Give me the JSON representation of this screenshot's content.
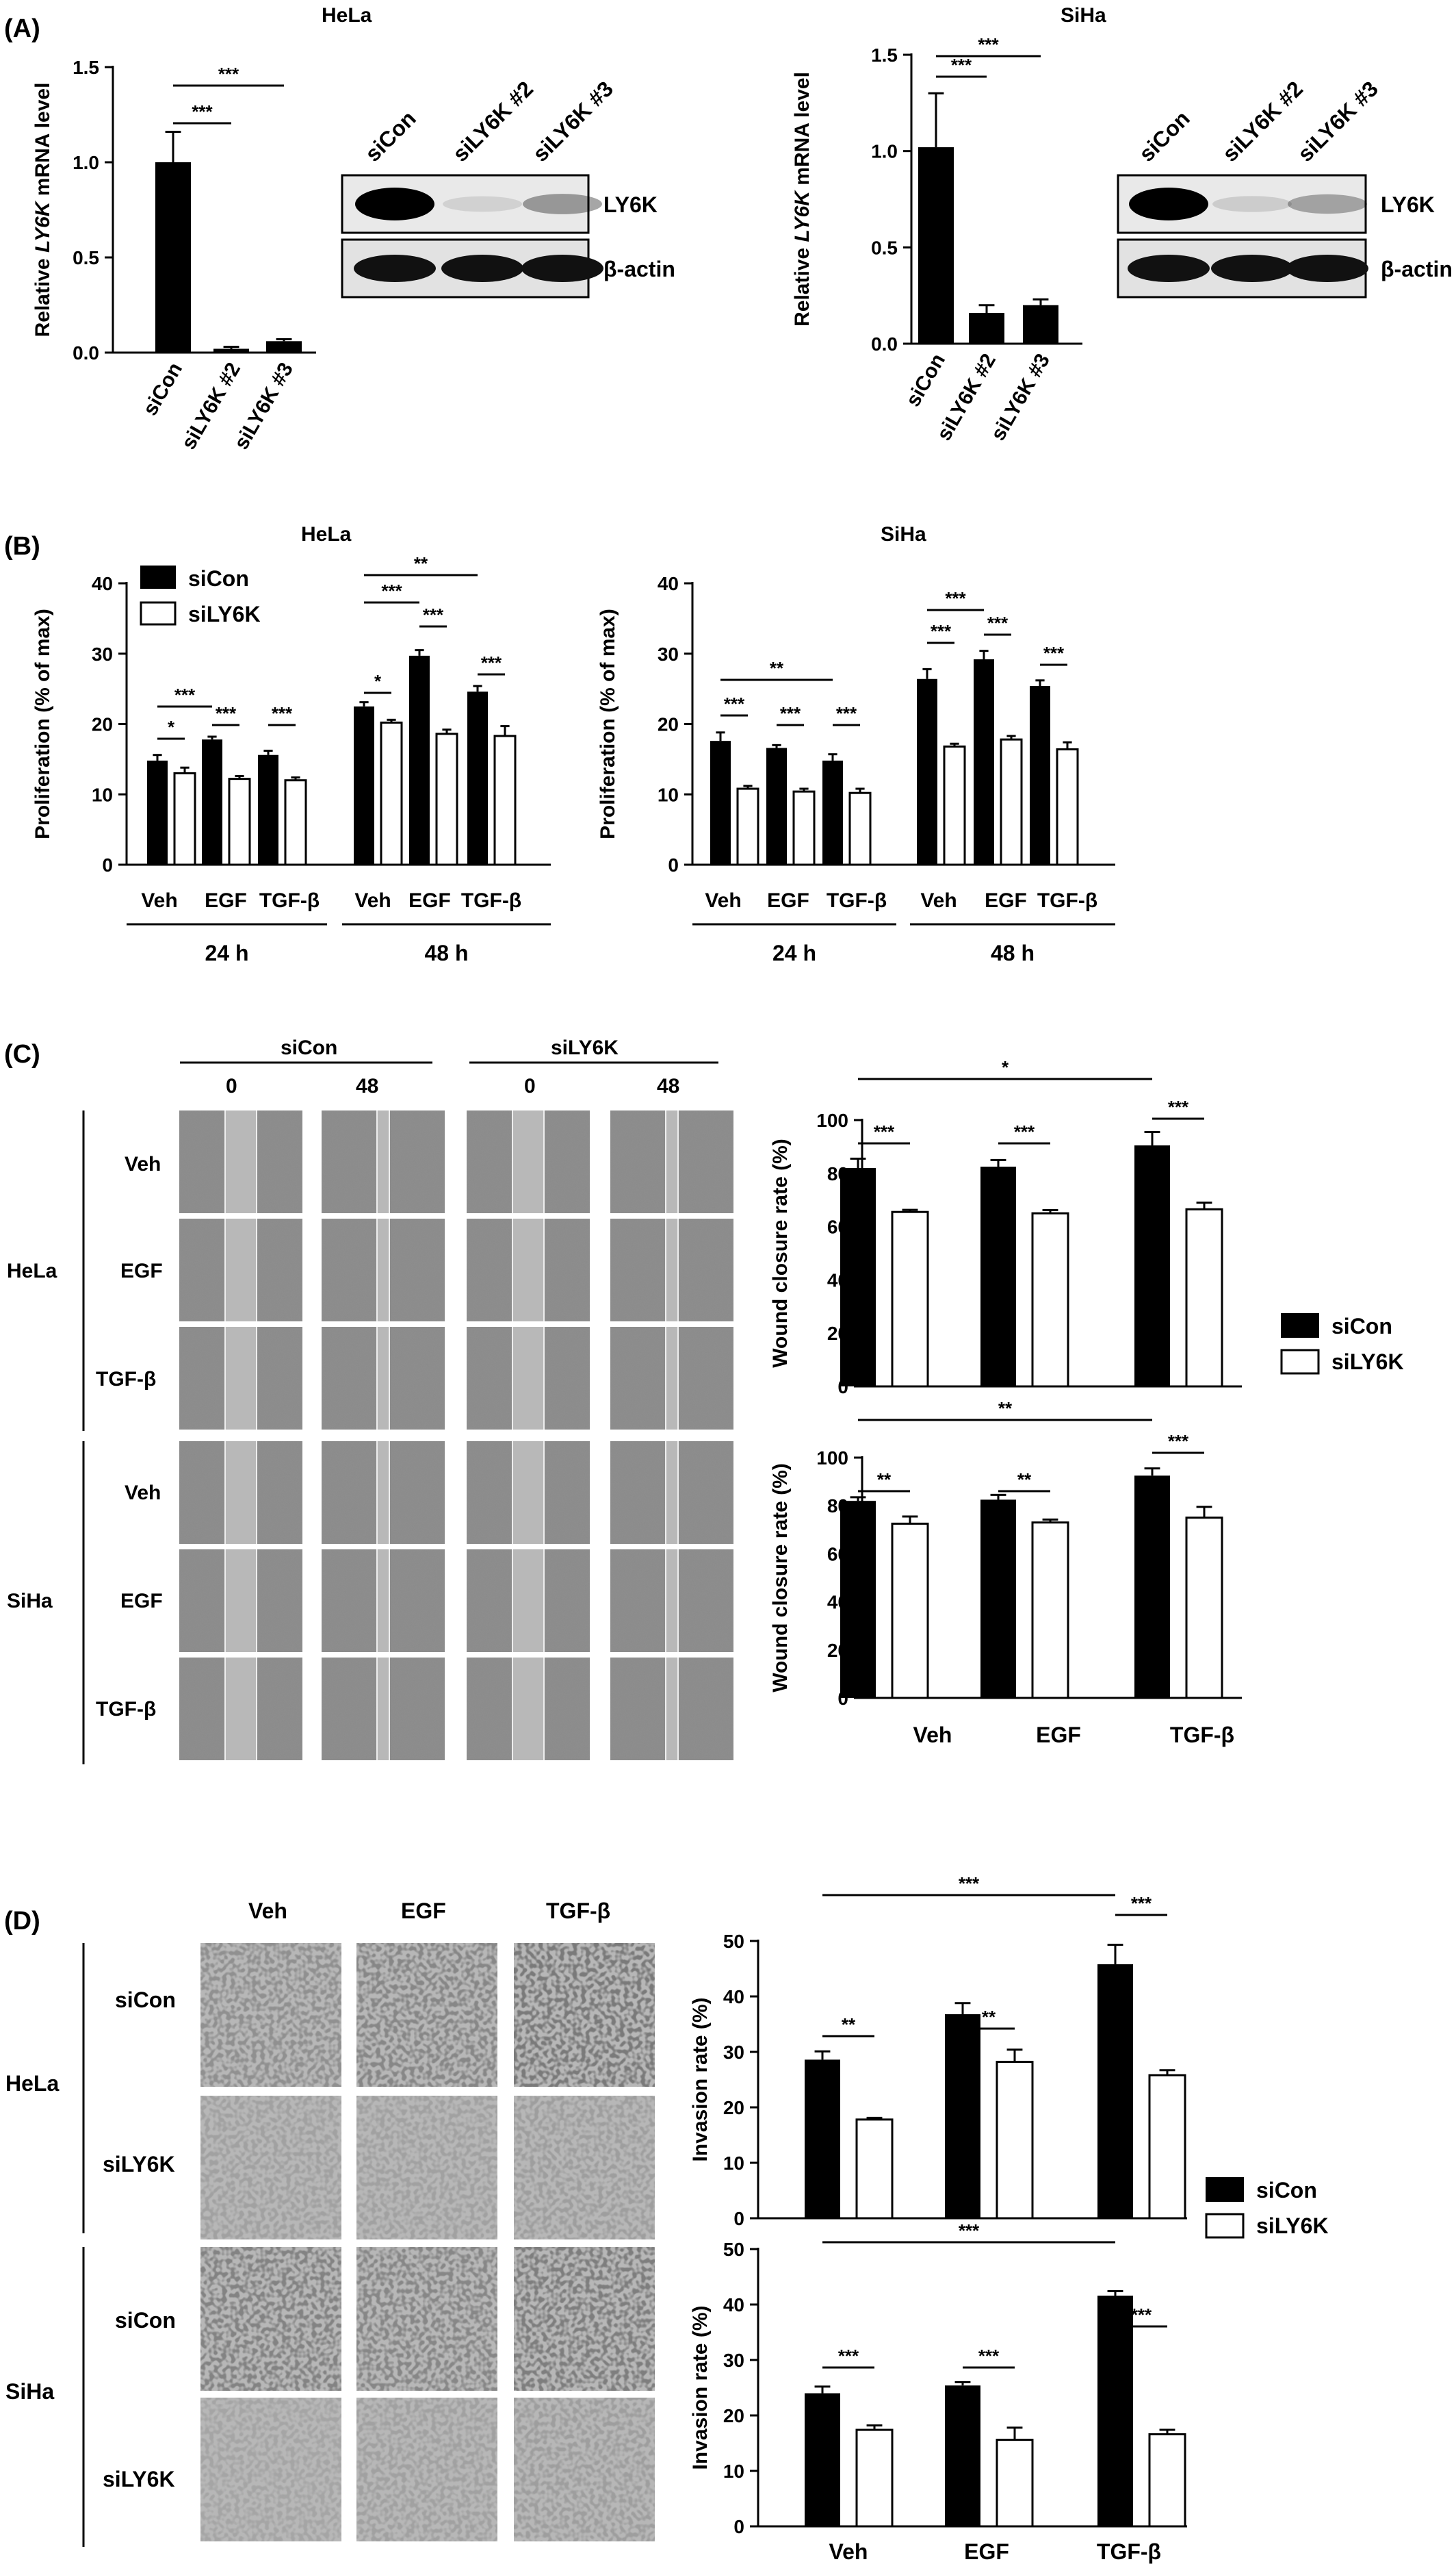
{
  "panels": {
    "A": {
      "label": "(A)",
      "charts": [
        {
          "cell": "HeLa",
          "chart_data": {
            "type": "bar",
            "ylabel_pre": "Relative ",
            "ylabel_it": "LY6K",
            "ylabel_post": " mRNA level",
            "ylim": [
              0,
              1.5
            ],
            "ticks": [
              "0.0",
              "0.5",
              "1.0",
              "1.5"
            ],
            "categories": [
              "siCon",
              "siLY6K #2",
              "siLY6K #3"
            ],
            "values": [
              1.0,
              0.02,
              0.06
            ],
            "errors": [
              0.16,
              0.01,
              0.01
            ],
            "sig": [
              {
                "from": 0,
                "to": 1,
                "label": "***"
              },
              {
                "from": 0,
                "to": 2,
                "label": "***"
              }
            ]
          },
          "blot": {
            "columns": [
              "siCon",
              "siLY6K #2",
              "siLY6K #3"
            ],
            "rows": [
              "LY6K",
              "β-actin"
            ]
          }
        },
        {
          "cell": "SiHa",
          "chart_data": {
            "type": "bar",
            "ylabel_pre": "Relative ",
            "ylabel_it": "LY6K",
            "ylabel_post": " mRNA level",
            "ylim": [
              0,
              1.5
            ],
            "ticks": [
              "0.0",
              "0.5",
              "1.0",
              "1.5"
            ],
            "categories": [
              "siCon",
              "siLY6K #2",
              "siLY6K #3"
            ],
            "values": [
              1.02,
              0.16,
              0.2
            ],
            "errors": [
              0.28,
              0.04,
              0.03
            ],
            "sig": [
              {
                "from": 0,
                "to": 1,
                "label": "***"
              },
              {
                "from": 0,
                "to": 2,
                "label": "***"
              }
            ]
          },
          "blot": {
            "columns": [
              "siCon",
              "siLY6K #2",
              "siLY6K #3"
            ],
            "rows": [
              "LY6K",
              "β-actin"
            ]
          }
        }
      ]
    },
    "B": {
      "label": "(B)",
      "legend": [
        "siCon",
        "siLY6K"
      ],
      "charts": [
        {
          "cell": "HeLa",
          "chart_data": {
            "type": "bar",
            "ylabel": "Proliferation (% of max)",
            "ylim": [
              0,
              40
            ],
            "ticks": [
              "0",
              "10",
              "20",
              "30",
              "40"
            ],
            "categories": [
              "Veh",
              "EGF",
              "TGF-β",
              "Veh",
              "EGF",
              "TGF-β"
            ],
            "time_groups": [
              "24 h",
              "48 h"
            ],
            "series": [
              {
                "name": "siCon",
                "values": [
                  14.8,
                  17.8,
                  15.6,
                  22.5,
                  29.7,
                  24.6
                ],
                "errors": [
                  0.8,
                  0.4,
                  0.6,
                  0.6,
                  0.8,
                  0.8
                ]
              },
              {
                "name": "siLY6K",
                "values": [
                  13.0,
                  12.2,
                  12.0,
                  20.2,
                  18.6,
                  18.3
                ],
                "errors": [
                  0.8,
                  0.4,
                  0.4,
                  0.4,
                  0.6,
                  1.4
                ]
              }
            ],
            "sig": [
              {
                "a": [
                  0,
                  0
                ],
                "b": [
                  0,
                  1
                ],
                "label": "*"
              },
              {
                "a": [
                  0,
                  0
                ],
                "b": [
                  1,
                  0
                ],
                "label": "***"
              },
              {
                "a": [
                  1,
                  0
                ],
                "b": [
                  1,
                  1
                ],
                "label": "***"
              },
              {
                "a": [
                  2,
                  0
                ],
                "b": [
                  2,
                  1
                ],
                "label": "***"
              },
              {
                "a": [
                  3,
                  0
                ],
                "b": [
                  3,
                  1
                ],
                "label": "*"
              },
              {
                "a": [
                  3,
                  0
                ],
                "b": [
                  4,
                  0
                ],
                "label": "***"
              },
              {
                "a": [
                  3,
                  0
                ],
                "b": [
                  5,
                  0
                ],
                "label": "**"
              },
              {
                "a": [
                  4,
                  0
                ],
                "b": [
                  4,
                  1
                ],
                "label": "***"
              },
              {
                "a": [
                  5,
                  0
                ],
                "b": [
                  5,
                  1
                ],
                "label": "***"
              }
            ]
          }
        },
        {
          "cell": "SiHa",
          "chart_data": {
            "type": "bar",
            "ylabel": "Proliferation (% of max)",
            "ylim": [
              0,
              40
            ],
            "ticks": [
              "0",
              "10",
              "20",
              "30",
              "40"
            ],
            "categories": [
              "Veh",
              "EGF",
              "TGF-β",
              "Veh",
              "EGF",
              "TGF-β"
            ],
            "time_groups": [
              "24 h",
              "48 h"
            ],
            "series": [
              {
                "name": "siCon",
                "values": [
                  17.6,
                  16.6,
                  14.8,
                  26.4,
                  29.2,
                  25.4
                ],
                "errors": [
                  1.2,
                  0.4,
                  0.9,
                  1.4,
                  1.2,
                  0.8
                ]
              },
              {
                "name": "siLY6K",
                "values": [
                  10.8,
                  10.4,
                  10.2,
                  16.8,
                  17.8,
                  16.4
                ],
                "errors": [
                  0.4,
                  0.4,
                  0.6,
                  0.4,
                  0.5,
                  1.0
                ]
              }
            ],
            "sig": [
              {
                "a": [
                  0,
                  0
                ],
                "b": [
                  0,
                  1
                ],
                "label": "***"
              },
              {
                "a": [
                  0,
                  0
                ],
                "b": [
                  2,
                  0
                ],
                "label": "**"
              },
              {
                "a": [
                  1,
                  0
                ],
                "b": [
                  1,
                  1
                ],
                "label": "***"
              },
              {
                "a": [
                  2,
                  0
                ],
                "b": [
                  2,
                  1
                ],
                "label": "***"
              },
              {
                "a": [
                  3,
                  0
                ],
                "b": [
                  3,
                  1
                ],
                "label": "***"
              },
              {
                "a": [
                  3,
                  0
                ],
                "b": [
                  4,
                  0
                ],
                "label": "***"
              },
              {
                "a": [
                  4,
                  0
                ],
                "b": [
                  4,
                  1
                ],
                "label": "***"
              },
              {
                "a": [
                  5,
                  0
                ],
                "b": [
                  5,
                  1
                ],
                "label": "***"
              }
            ]
          }
        }
      ]
    },
    "C": {
      "label": "(C)",
      "conditions": [
        "siCon",
        "siLY6K"
      ],
      "timepoints": [
        "0",
        "48"
      ],
      "cells": [
        "HeLa",
        "SiHa"
      ],
      "treatments": [
        "Veh",
        "EGF",
        "TGF-β"
      ],
      "legend": [
        "siCon",
        "siLY6K"
      ],
      "charts": [
        {
          "chart_data": {
            "type": "bar",
            "ylabel": "Wound closure rate (%)",
            "ylim": [
              0,
              100
            ],
            "ticks": [
              "0",
              "20",
              "40",
              "60",
              "80",
              "100"
            ],
            "categories": [
              "Veh",
              "EGF",
              "TGF-β"
            ],
            "series": [
              {
                "name": "siCon",
                "values": [
                  82,
                  82.5,
                  90.5
                ],
                "errors": [
                  3.5,
                  2.5,
                  5
                ]
              },
              {
                "name": "siLY6K",
                "values": [
                  65.5,
                  65,
                  66.5
                ],
                "errors": [
                  0.8,
                  1.2,
                  2.5
                ]
              }
            ],
            "sig": [
              {
                "a": [
                  0,
                  0
                ],
                "b": [
                  0,
                  1
                ],
                "label": "***"
              },
              {
                "a": [
                  1,
                  0
                ],
                "b": [
                  1,
                  1
                ],
                "label": "***"
              },
              {
                "a": [
                  2,
                  0
                ],
                "b": [
                  2,
                  1
                ],
                "label": "***"
              },
              {
                "a": [
                  0,
                  0
                ],
                "b": [
                  2,
                  0
                ],
                "label": "*"
              }
            ]
          }
        },
        {
          "chart_data": {
            "type": "bar",
            "ylabel": "Wound closure rate (%)",
            "ylim": [
              0,
              100
            ],
            "ticks": [
              "0",
              "20",
              "40",
              "60",
              "80",
              "100"
            ],
            "categories": [
              "Veh",
              "EGF",
              "TGF-β"
            ],
            "series": [
              {
                "name": "siCon",
                "values": [
                  82,
                  82.5,
                  92.5
                ],
                "errors": [
                  1.5,
                  2,
                  3
                ]
              },
              {
                "name": "siLY6K",
                "values": [
                  72.5,
                  73,
                  75
                ],
                "errors": [
                  3,
                  1.2,
                  4.5
                ]
              }
            ],
            "sig": [
              {
                "a": [
                  0,
                  0
                ],
                "b": [
                  0,
                  1
                ],
                "label": "**"
              },
              {
                "a": [
                  1,
                  0
                ],
                "b": [
                  1,
                  1
                ],
                "label": "**"
              },
              {
                "a": [
                  2,
                  0
                ],
                "b": [
                  2,
                  1
                ],
                "label": "***"
              },
              {
                "a": [
                  0,
                  0
                ],
                "b": [
                  2,
                  0
                ],
                "label": "**"
              }
            ]
          }
        }
      ]
    },
    "D": {
      "label": "(D)",
      "treatments": [
        "Veh",
        "EGF",
        "TGF-β"
      ],
      "cells": [
        "HeLa",
        "SiHa"
      ],
      "conditions": [
        "siCon",
        "siLY6K"
      ],
      "legend": [
        "siCon",
        "siLY6K"
      ],
      "charts": [
        {
          "chart_data": {
            "type": "bar",
            "ylabel": "Invasion rate (%)",
            "ylim": [
              0,
              50
            ],
            "ticks": [
              "0",
              "10",
              "20",
              "30",
              "40",
              "50"
            ],
            "categories": [
              "Veh",
              "EGF",
              "TGF-β"
            ],
            "series": [
              {
                "name": "siCon",
                "values": [
                  28.6,
                  36.8,
                  45.8
                ],
                "errors": [
                  1.5,
                  2.0,
                  3.5
                ]
              },
              {
                "name": "siLY6K",
                "values": [
                  17.8,
                  28.2,
                  25.8
                ],
                "errors": [
                  0.3,
                  2.2,
                  0.9
                ]
              }
            ],
            "sig": [
              {
                "a": [
                  0,
                  0
                ],
                "b": [
                  0,
                  1
                ],
                "label": "**"
              },
              {
                "a": [
                  1,
                  0
                ],
                "b": [
                  1,
                  1
                ],
                "label": "**"
              },
              {
                "a": [
                  2,
                  0
                ],
                "b": [
                  2,
                  1
                ],
                "label": "***"
              },
              {
                "a": [
                  0,
                  0
                ],
                "b": [
                  2,
                  0
                ],
                "label": "***"
              }
            ]
          }
        },
        {
          "chart_data": {
            "type": "bar",
            "ylabel": "Invasion rate (%)",
            "ylim": [
              0,
              50
            ],
            "ticks": [
              "0",
              "10",
              "20",
              "30",
              "40",
              "50"
            ],
            "categories": [
              "Veh",
              "EGF",
              "TGF-β"
            ],
            "series": [
              {
                "name": "siCon",
                "values": [
                  24.0,
                  25.4,
                  41.6
                ],
                "errors": [
                  1.2,
                  0.6,
                  0.8
                ]
              },
              {
                "name": "siLY6K",
                "values": [
                  17.4,
                  15.6,
                  16.6
                ],
                "errors": [
                  0.8,
                  2.2,
                  0.8
                ]
              }
            ],
            "sig": [
              {
                "a": [
                  0,
                  0
                ],
                "b": [
                  0,
                  1
                ],
                "label": "***"
              },
              {
                "a": [
                  1,
                  0
                ],
                "b": [
                  1,
                  1
                ],
                "label": "***"
              },
              {
                "a": [
                  2,
                  0
                ],
                "b": [
                  2,
                  1
                ],
                "label": "***"
              },
              {
                "a": [
                  0,
                  0
                ],
                "b": [
                  2,
                  0
                ],
                "label": "***"
              }
            ]
          }
        }
      ]
    }
  }
}
